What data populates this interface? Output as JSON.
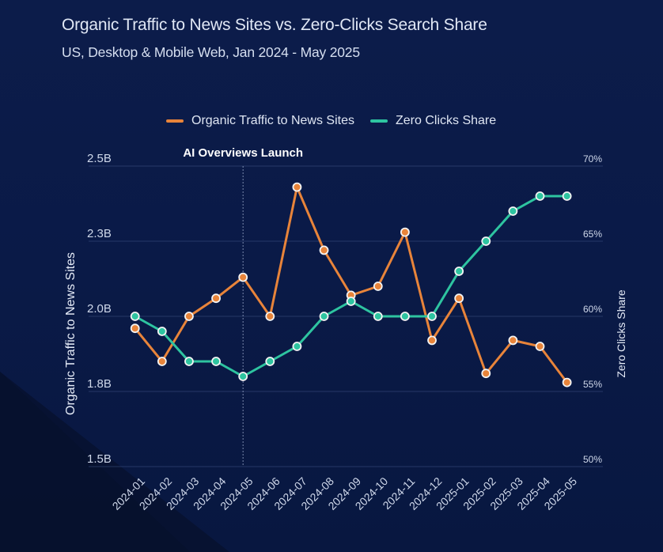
{
  "chart_data": {
    "type": "line",
    "title": "Organic Traffic to News Sites vs. Zero-Clicks Search Share",
    "subtitle": "US, Desktop & Mobile Web, Jan 2024 - May 2025",
    "x": [
      "2024-01",
      "2024-02",
      "2024-03",
      "2024-04",
      "2024-05",
      "2024-06",
      "2024-07",
      "2024-08",
      "2024-09",
      "2024-10",
      "2024-11",
      "2024-12",
      "2025-01",
      "2025-02",
      "2025-03",
      "2025-04",
      "2025-05"
    ],
    "series": [
      {
        "name": "Organic Traffic to News Sites",
        "axis": "left",
        "color": "#e8843a",
        "values": [
          1.96,
          1.85,
          2.0,
          2.06,
          2.13,
          2.0,
          2.43,
          2.22,
          2.07,
          2.1,
          2.28,
          1.92,
          2.06,
          1.81,
          1.92,
          1.9,
          1.78
        ]
      },
      {
        "name": "Zero Clicks Share",
        "axis": "right",
        "color": "#2ec4a0",
        "values": [
          60,
          59,
          57,
          57,
          56,
          57,
          58,
          60,
          61,
          60,
          60,
          60,
          63,
          65,
          67,
          68,
          68
        ]
      }
    ],
    "ylabel": "Organic Traffic to News Sites",
    "y2label": "Zero Clicks Share",
    "ylim": [
      1.5,
      2.5
    ],
    "y2lim": [
      50,
      70
    ],
    "yticks": [
      "2.5B",
      "2.3B",
      "2.0B",
      "1.8B",
      "1.5B"
    ],
    "y2ticks": [
      "70%",
      "65%",
      "60%",
      "55%",
      "50%"
    ],
    "annotation": {
      "label": "AI Overviews Launch",
      "x": "2024-05"
    },
    "grid": true,
    "legend": "top-center"
  }
}
